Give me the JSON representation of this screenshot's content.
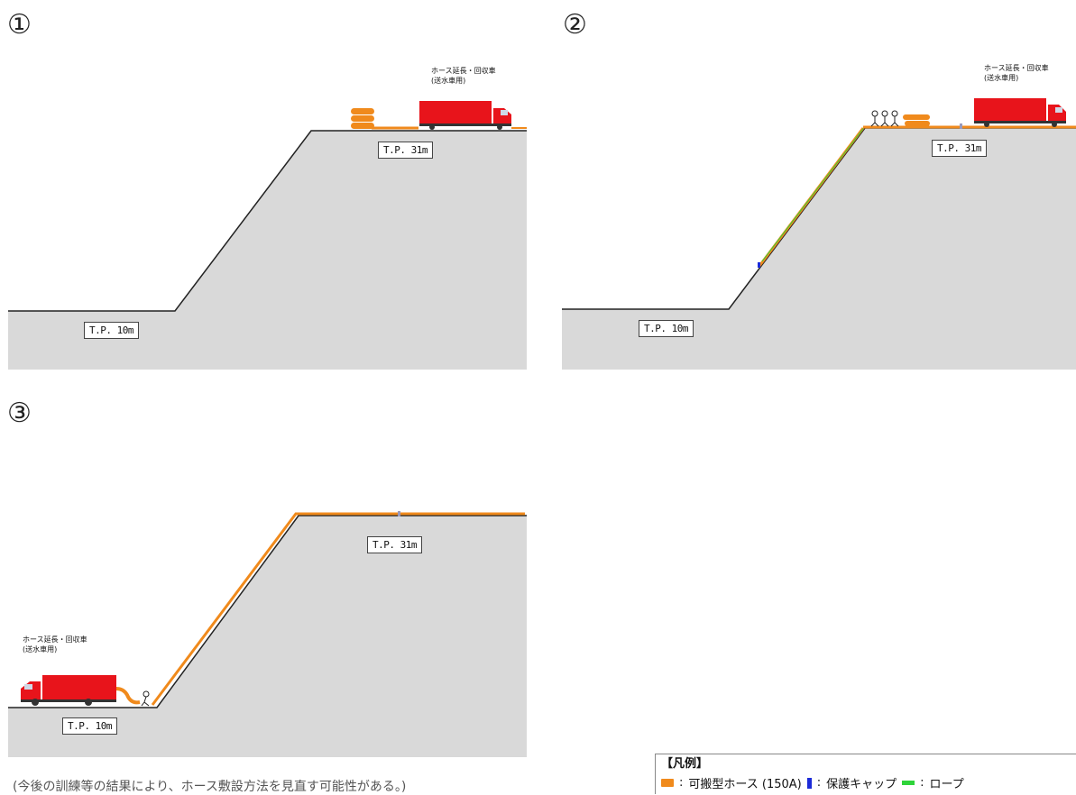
{
  "steps": [
    {
      "number": "①",
      "upper_label": "T.P. 31m",
      "lower_label": "T.P. 10m",
      "truck_label_1": "ホース延長・回収車",
      "truck_label_2": "(送水車用)"
    },
    {
      "number": "②",
      "upper_label": "T.P. 31m",
      "lower_label": "T.P. 10m",
      "truck_label_1": "ホース延長・回収車",
      "truck_label_2": "(送水車用)"
    },
    {
      "number": "③",
      "upper_label": "T.P. 31m",
      "lower_label": "T.P. 10m",
      "truck_label_1": "ホース延長・回収車",
      "truck_label_2": "(送水車用)"
    }
  ],
  "note": "(今後の訓練等の結果により、ホース敷設方法を見直す可能性がある。)",
  "legend": {
    "title": "【凡例】",
    "items": [
      {
        "label": "可搬型ホース (150A)",
        "color": "#f08a1c",
        "icon": "hose-icon"
      },
      {
        "label": "保護キャップ",
        "color": "#1c2bd8",
        "icon": "cap-icon"
      },
      {
        "label": "ロープ",
        "color": "#2fd43a",
        "icon": "rope-icon"
      }
    ]
  },
  "colors": {
    "ground": "#d9d9d9",
    "hose": "#f08a1c",
    "truck": "#e8141b"
  }
}
